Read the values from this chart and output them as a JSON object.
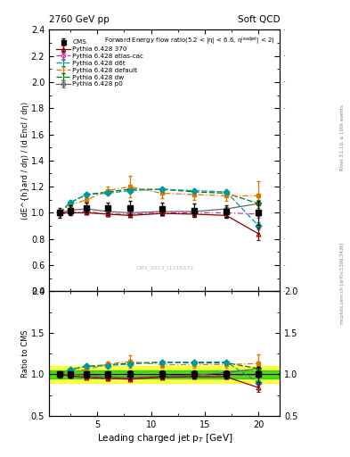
{
  "title_left": "2760 GeV pp",
  "title_right": "Soft QCD",
  "panel_title": "Forward Energy flow ratio(5.2 < |η| < 6.6, η^{leadjet}| < 2)",
  "watermark": "CMS_2013_I1218372",
  "right_label1": "Rivet 3.1.10, ≥ 100k events",
  "right_label2": "mcplots.cern.ch [arXiv:1306.3436]",
  "xlabel": "Leading charged jet p_{T} [GeV]",
  "ylabel_main": "(dE^{h}ard / dη) / (d Encl / dη)",
  "ylabel_ratio": "Ratio to CMS",
  "x_data": [
    1.5,
    2.5,
    4.0,
    6.0,
    8.0,
    11.0,
    14.0,
    17.0,
    20.0
  ],
  "cms_y": [
    1.0,
    1.02,
    1.04,
    1.04,
    1.04,
    1.03,
    1.02,
    1.01,
    1.0
  ],
  "cms_yerr": [
    0.04,
    0.04,
    0.04,
    0.04,
    0.05,
    0.05,
    0.05,
    0.05,
    0.09
  ],
  "p370_y": [
    1.0,
    1.0,
    1.0,
    0.99,
    0.98,
    0.995,
    0.99,
    0.98,
    0.84
  ],
  "p370_yerr": [
    0.01,
    0.01,
    0.01,
    0.01,
    0.01,
    0.01,
    0.01,
    0.01,
    0.05
  ],
  "atlas_y": [
    0.99,
    1.0,
    1.01,
    0.99,
    0.99,
    1.0,
    1.0,
    1.0,
    0.99
  ],
  "atlas_yerr": [
    0.01,
    0.01,
    0.01,
    0.01,
    0.01,
    0.01,
    0.01,
    0.01,
    0.03
  ],
  "d6t_y": [
    1.0,
    1.08,
    1.14,
    1.15,
    1.17,
    1.18,
    1.17,
    1.16,
    0.9
  ],
  "d6t_yerr": [
    0.01,
    0.01,
    0.01,
    0.01,
    0.01,
    0.01,
    0.01,
    0.01,
    0.03
  ],
  "default_y": [
    1.0,
    1.06,
    1.1,
    1.17,
    1.2,
    1.15,
    1.14,
    1.13,
    1.13
  ],
  "default_yerr": [
    0.01,
    0.02,
    0.02,
    0.03,
    0.08,
    0.04,
    0.04,
    0.04,
    0.11
  ],
  "dw_y": [
    1.0,
    1.08,
    1.14,
    1.16,
    1.18,
    1.18,
    1.16,
    1.15,
    1.07
  ],
  "dw_yerr": [
    0.01,
    0.01,
    0.01,
    0.01,
    0.01,
    0.01,
    0.01,
    0.01,
    0.05
  ],
  "p0_y": [
    1.0,
    1.02,
    1.03,
    1.01,
    1.0,
    1.01,
    1.01,
    1.03,
    1.07
  ],
  "p0_yerr": [
    0.01,
    0.01,
    0.01,
    0.01,
    0.01,
    0.01,
    0.01,
    0.01,
    0.03
  ],
  "color_cms": "#000000",
  "color_370": "#8b0000",
  "color_atlas": "#cc3399",
  "color_d6t": "#009999",
  "color_default": "#dd7700",
  "color_dw": "#007700",
  "color_p0": "#666666",
  "ylim_main": [
    0.4,
    2.4
  ],
  "ylim_ratio": [
    0.5,
    2.0
  ],
  "yticks_main": [
    0.4,
    0.6,
    0.8,
    1.0,
    1.2,
    1.4,
    1.6,
    1.8,
    2.0,
    2.2,
    2.4
  ],
  "yticks_ratio": [
    0.5,
    1.0,
    1.5,
    2.0
  ],
  "band_green": 0.05,
  "band_yellow": 0.1,
  "xlim": [
    0.5,
    22
  ]
}
